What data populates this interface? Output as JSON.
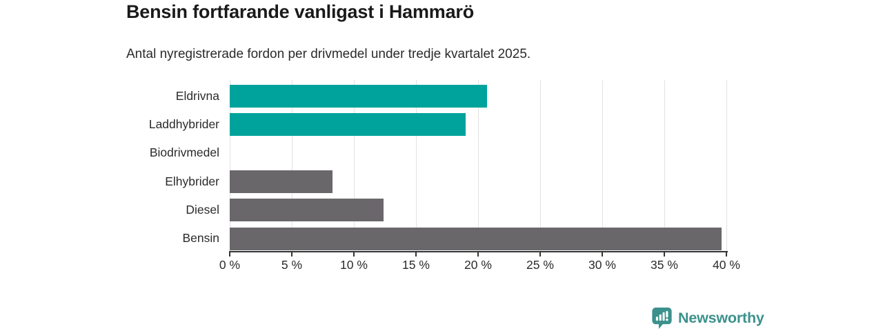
{
  "header": {
    "title": "Bensin fortfarande vanligast i Hammarö",
    "subtitle": "Antal nyregistrerade fordon per drivmedel under tredje kvartalet 2025."
  },
  "chart_data": {
    "type": "bar",
    "orientation": "horizontal",
    "title": "Bensin fortfarande vanligast i Hammarö",
    "subtitle": "Antal nyregistrerade fordon per drivmedel under tredje kvartalet 2025.",
    "categories": [
      "Eldrivna",
      "Laddhybrider",
      "Biodrivmedel",
      "Elhybrider",
      "Diesel",
      "Bensin"
    ],
    "values": [
      20.7,
      19.0,
      0,
      8.3,
      12.4,
      39.6
    ],
    "unit": "%",
    "bar_colors": [
      "#00a39c",
      "#00a39c",
      "#00a39c",
      "#6a676b",
      "#6a676b",
      "#6a676b"
    ],
    "xlabel": "",
    "ylabel": "",
    "xlim": [
      0,
      40
    ],
    "x_ticks": [
      0,
      5,
      10,
      15,
      20,
      25,
      30,
      35,
      40
    ],
    "x_tick_labels": [
      "0 %",
      "5 %",
      "10 %",
      "15 %",
      "20 %",
      "25 %",
      "30 %",
      "35 %",
      "40 %"
    ],
    "grid": "vertical-gridlines",
    "legend": "none"
  },
  "footer": {
    "brand": "Newsworthy"
  },
  "colors": {
    "teal": "#00a39c",
    "gray": "#6a676b",
    "axis": "#333333",
    "grid": "#e2e2e2",
    "brand_teal": "#3c918c",
    "title_text": "#1a1a1a",
    "body_text": "#2b2b2b"
  }
}
